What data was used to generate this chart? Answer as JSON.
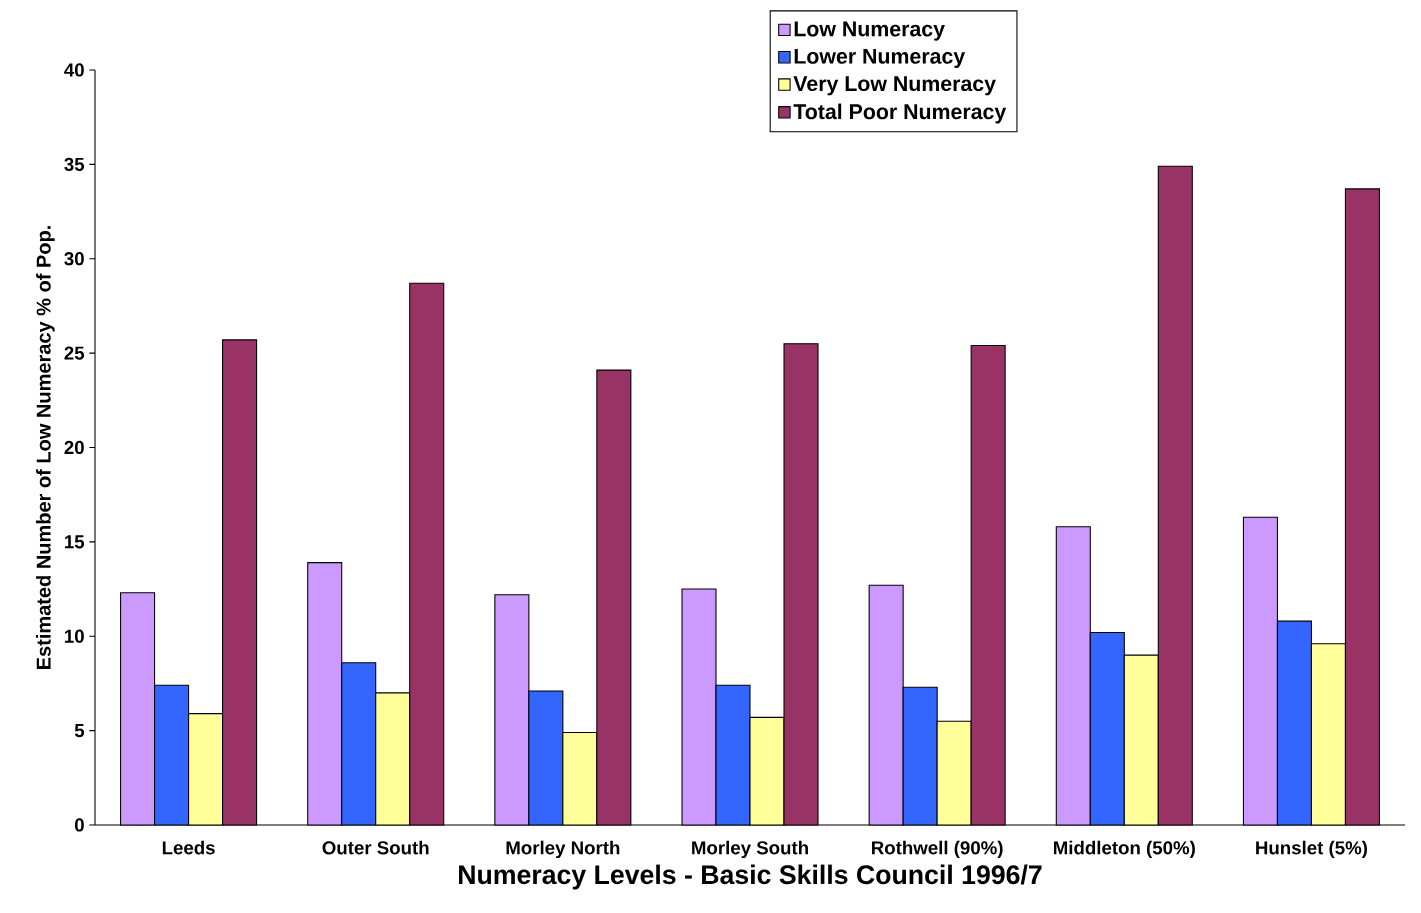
{
  "chart_data": {
    "type": "bar",
    "xlabel": "Numeracy Levels - Basic Skills Council 1996/7",
    "ylabel": "Estimated Number of Low Numeracy % of Pop.",
    "categories": [
      "Leeds",
      "Outer South",
      "Morley North",
      "Morley South",
      "Rothwell (90%)",
      "Middleton (50%)",
      "Hunslet (5%)"
    ],
    "series": [
      {
        "name": "Low Numeracy",
        "color": "#cc99ff",
        "values": [
          12.3,
          13.9,
          12.2,
          12.5,
          12.7,
          15.8,
          16.3
        ]
      },
      {
        "name": "Lower Numeracy",
        "color": "#3366ff",
        "values": [
          7.4,
          8.6,
          7.1,
          7.4,
          7.3,
          10.2,
          10.8
        ]
      },
      {
        "name": "Very Low Numeracy",
        "color": "#ffff99",
        "values": [
          5.9,
          7.0,
          4.9,
          5.7,
          5.5,
          9.0,
          9.6
        ]
      },
      {
        "name": "Total Poor Numeracy",
        "color": "#993366",
        "values": [
          25.7,
          28.7,
          24.1,
          25.5,
          25.4,
          34.9,
          33.7
        ]
      }
    ],
    "ylim": [
      0,
      40
    ],
    "yticks": [
      0,
      5,
      10,
      15,
      20,
      25,
      30,
      35,
      40
    ],
    "grid": false,
    "legend": "top right"
  }
}
